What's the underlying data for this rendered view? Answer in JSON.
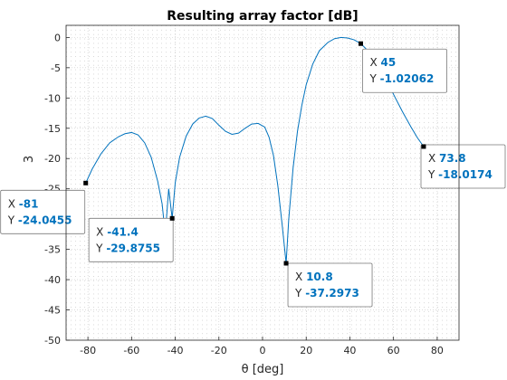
{
  "chart_data": {
    "type": "line",
    "title": "Resulting array factor [dB]",
    "xlabel": "θ [deg]",
    "ylabel_fragment": "3",
    "xlim": [
      -90,
      90
    ],
    "ylim": [
      -50,
      2
    ],
    "x_ticks": [
      -80,
      -60,
      -40,
      -20,
      0,
      20,
      40,
      60,
      80
    ],
    "y_ticks": [
      0,
      -5,
      -10,
      -15,
      -20,
      -25,
      -30,
      -35,
      -40,
      -45,
      -50
    ],
    "grid": true,
    "minor_grid": true,
    "series": [
      {
        "color": "#0072BD",
        "points": [
          [
            -81,
            -24.05
          ],
          [
            -78,
            -21.7
          ],
          [
            -74,
            -19.2
          ],
          [
            -70,
            -17.4
          ],
          [
            -66,
            -16.4
          ],
          [
            -63,
            -15.9
          ],
          [
            -60,
            -15.7
          ],
          [
            -57,
            -16.1
          ],
          [
            -54,
            -17.4
          ],
          [
            -51,
            -19.8
          ],
          [
            -48,
            -23.8
          ],
          [
            -46,
            -27.5
          ],
          [
            -45,
            -31.0
          ],
          [
            -44.2,
            -30.8
          ],
          [
            -43,
            -25.0
          ],
          [
            -41.4,
            -29.88
          ],
          [
            -40,
            -24.0
          ],
          [
            -38,
            -19.8
          ],
          [
            -35,
            -16.3
          ],
          [
            -32,
            -14.3
          ],
          [
            -29,
            -13.3
          ],
          [
            -26,
            -13.0
          ],
          [
            -23,
            -13.4
          ],
          [
            -20,
            -14.5
          ],
          [
            -17,
            -15.5
          ],
          [
            -14,
            -16.0
          ],
          [
            -11,
            -15.8
          ],
          [
            -8,
            -15.0
          ],
          [
            -5,
            -14.3
          ],
          [
            -2,
            -14.2
          ],
          [
            1,
            -14.8
          ],
          [
            3,
            -16.5
          ],
          [
            5,
            -19.5
          ],
          [
            7,
            -24.5
          ],
          [
            9,
            -31.0
          ],
          [
            10.8,
            -37.3
          ],
          [
            12,
            -30.0
          ],
          [
            14,
            -21.5
          ],
          [
            16,
            -15.5
          ],
          [
            18,
            -11.2
          ],
          [
            20,
            -7.8
          ],
          [
            23,
            -4.4
          ],
          [
            26,
            -2.2
          ],
          [
            30,
            -0.8
          ],
          [
            33,
            -0.2
          ],
          [
            36,
            0.0
          ],
          [
            39,
            -0.1
          ],
          [
            42,
            -0.4
          ],
          [
            45,
            -1.02
          ],
          [
            48,
            -2.1
          ],
          [
            52,
            -4.0
          ],
          [
            56,
            -6.5
          ],
          [
            60,
            -9.4
          ],
          [
            64,
            -12.2
          ],
          [
            68,
            -14.8
          ],
          [
            71,
            -16.6
          ],
          [
            73.8,
            -18.02
          ]
        ]
      }
    ],
    "datatips": [
      {
        "x": "-81",
        "y": "-24.0455"
      },
      {
        "x": "-41.4",
        "y": "-29.8755"
      },
      {
        "x": "10.8",
        "y": "-37.2973"
      },
      {
        "x": "45",
        "y": "-1.02062"
      },
      {
        "x": "73.8",
        "y": "-18.0174"
      }
    ],
    "tip_label_x": "X",
    "tip_label_y": "Y",
    "tip_value_color": "#0072BD"
  }
}
